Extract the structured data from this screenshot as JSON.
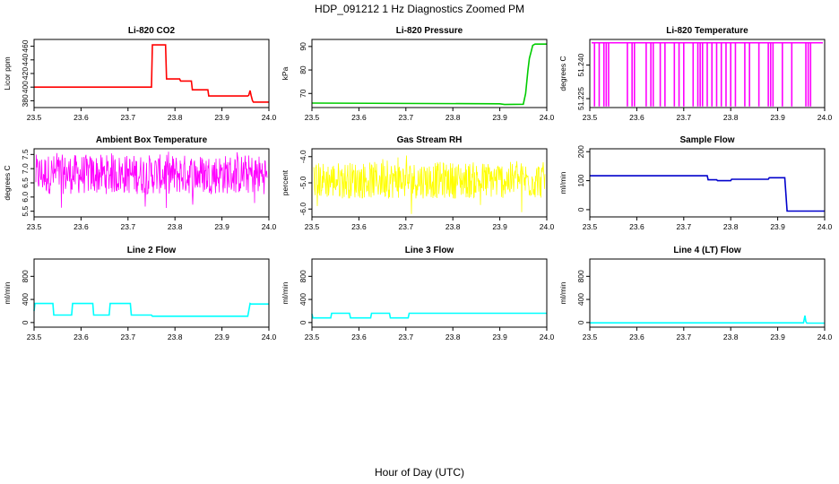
{
  "figure": {
    "title": "HDP_091212  1 Hz Diagnostics Zoomed PM",
    "xlabel": "Hour of Day (UTC)"
  },
  "chart_data": [
    {
      "type": "line",
      "title": "Li-820 CO2",
      "ylabel": "Licor ppm",
      "color": "#ff0000",
      "xlim": [
        23.5,
        24.0
      ],
      "ylim": [
        370,
        470
      ],
      "xticks": [
        "23.5",
        "23.6",
        "23.7",
        "23.8",
        "23.9",
        "24.0"
      ],
      "yticks": [
        "380",
        "400",
        "420",
        "440",
        "460"
      ],
      "series": [
        {
          "x": [
            23.5,
            23.75,
            23.752,
            23.78,
            23.782,
            23.81,
            23.812,
            23.835,
            23.837,
            23.87,
            23.872,
            23.955,
            23.957,
            23.96,
            23.962,
            23.965,
            23.967,
            24.0
          ],
          "y": [
            400,
            400,
            462,
            462,
            412,
            412,
            409,
            409,
            396,
            396,
            387,
            387,
            388,
            395,
            388,
            380,
            378,
            378
          ]
        }
      ]
    },
    {
      "type": "line",
      "title": "Li-820 Pressure",
      "ylabel": "kPa",
      "color": "#00cc00",
      "xlim": [
        23.5,
        24.0
      ],
      "ylim": [
        64,
        93
      ],
      "xticks": [
        "23.5",
        "23.6",
        "23.7",
        "23.8",
        "23.9",
        "24.0"
      ],
      "yticks": [
        "70",
        "80",
        "90"
      ],
      "series": [
        {
          "x": [
            23.5,
            23.9,
            23.91,
            23.95,
            23.955,
            23.96,
            23.963,
            23.967,
            23.97,
            23.975,
            24.0
          ],
          "y": [
            65.9,
            65.6,
            65.3,
            65.4,
            70,
            80,
            85,
            88,
            90.5,
            91,
            91
          ]
        }
      ]
    },
    {
      "type": "line",
      "title": "Li-820 Temperature",
      "ylabel": "degrees C",
      "color": "#ff00ff",
      "xlim": [
        23.5,
        24.0
      ],
      "ylim": [
        51.221,
        51.2515
      ],
      "xticks": [
        "23.5",
        "23.6",
        "23.7",
        "23.8",
        "23.9",
        "24.0"
      ],
      "yticks": [
        "51.225",
        "51.240"
      ],
      "series": [
        {
          "x": [
            23.51,
            23.52,
            23.53,
            23.535,
            23.54,
            23.58,
            23.59,
            23.595,
            23.62,
            23.63,
            23.635,
            23.65,
            23.66,
            23.68,
            23.69,
            23.7,
            23.72,
            23.73,
            23.735,
            23.74,
            23.75,
            23.76,
            23.77,
            23.78,
            23.79,
            23.8,
            23.81,
            23.83,
            23.84,
            23.86,
            23.88,
            23.885,
            23.89,
            23.91,
            23.93,
            23.96,
            23.965,
            23.97
          ],
          "high": 51.25,
          "low": 51.2215
        }
      ]
    },
    {
      "type": "line",
      "title": "Ambient Box Temperature",
      "ylabel": "degrees C",
      "color": "#ff00ff",
      "xlim": [
        23.5,
        24.0
      ],
      "ylim": [
        5.3,
        7.7
      ],
      "xticks": [
        "23.5",
        "23.6",
        "23.7",
        "23.8",
        "23.9",
        "24.0"
      ],
      "yticks": [
        "5.5",
        "6.0",
        "6.5",
        "7.0",
        "7.5"
      ],
      "series": [
        {
          "x_range": [
            23.5,
            24.0
          ],
          "mean": 6.8,
          "band": [
            6.1,
            7.5
          ],
          "min": 5.4,
          "max": 7.6
        }
      ]
    },
    {
      "type": "line",
      "title": "Gas Stream RH",
      "ylabel": "percent",
      "color": "#ffff00",
      "xlim": [
        23.5,
        24.0
      ],
      "ylim": [
        -6.3,
        -3.7
      ],
      "xticks": [
        "23.5",
        "23.6",
        "23.7",
        "23.8",
        "23.9",
        "24.0"
      ],
      "yticks": [
        "-6.0",
        "-5.0",
        "-4.0"
      ],
      "series": [
        {
          "x_range": [
            23.5,
            24.0
          ],
          "mean": -4.9,
          "band": [
            -5.6,
            -4.2
          ],
          "min": -6.2,
          "max": -3.9
        }
      ]
    },
    {
      "type": "line",
      "title": "Sample Flow",
      "ylabel": "ml/min",
      "color": "#0000cc",
      "xlim": [
        23.5,
        24.0
      ],
      "ylim": [
        -25,
        210
      ],
      "xticks": [
        "23.5",
        "23.6",
        "23.7",
        "23.8",
        "23.9",
        "24.0"
      ],
      "yticks": [
        "0",
        "100",
        "200"
      ],
      "series": [
        {
          "x": [
            23.5,
            23.75,
            23.752,
            23.77,
            23.772,
            23.8,
            23.802,
            23.88,
            23.882,
            23.915,
            23.92,
            24.0
          ],
          "y": [
            117,
            117,
            103,
            103,
            100,
            100,
            105,
            105,
            110,
            110,
            -5,
            -5
          ]
        }
      ]
    },
    {
      "type": "line",
      "title": "Line 2 Flow",
      "ylabel": "ml/min",
      "color": "#00ffff",
      "xlim": [
        23.5,
        24.0
      ],
      "ylim": [
        -80,
        1100
      ],
      "xticks": [
        "23.5",
        "23.6",
        "23.7",
        "23.8",
        "23.9",
        "24.0"
      ],
      "yticks": [
        "0",
        "400",
        "800"
      ],
      "series": [
        {
          "x": [
            23.5,
            23.502,
            23.54,
            23.542,
            23.58,
            23.582,
            23.625,
            23.627,
            23.66,
            23.662,
            23.705,
            23.707,
            23.75,
            23.752,
            23.955,
            23.957,
            23.96,
            23.962,
            24.0
          ],
          "y": [
            200,
            330,
            330,
            130,
            130,
            330,
            330,
            130,
            130,
            330,
            330,
            130,
            130,
            110,
            110,
            200,
            330,
            320,
            320
          ]
        }
      ]
    },
    {
      "type": "line",
      "title": "Line 3 Flow",
      "ylabel": "ml/min",
      "color": "#00ffff",
      "xlim": [
        23.5,
        24.0
      ],
      "ylim": [
        -80,
        1100
      ],
      "xticks": [
        "23.5",
        "23.6",
        "23.7",
        "23.8",
        "23.9",
        "24.0"
      ],
      "yticks": [
        "0",
        "400",
        "800"
      ],
      "series": [
        {
          "x": [
            23.5,
            23.502,
            23.54,
            23.542,
            23.58,
            23.582,
            23.625,
            23.627,
            23.665,
            23.667,
            23.705,
            23.707,
            24.0
          ],
          "y": [
            150,
            80,
            80,
            160,
            160,
            80,
            80,
            160,
            160,
            80,
            80,
            160,
            160
          ]
        }
      ]
    },
    {
      "type": "line",
      "title": "Line 4 (LT) Flow",
      "ylabel": "ml/min",
      "color": "#00ffff",
      "xlim": [
        23.5,
        24.0
      ],
      "ylim": [
        -80,
        1100
      ],
      "xticks": [
        "23.5",
        "23.6",
        "23.7",
        "23.8",
        "23.9",
        "24.0"
      ],
      "yticks": [
        "0",
        "400",
        "800"
      ],
      "series": [
        {
          "x": [
            23.5,
            23.955,
            23.957,
            23.958,
            23.96,
            23.962,
            24.0
          ],
          "y": [
            -5,
            -5,
            80,
            120,
            20,
            -10,
            -10
          ]
        }
      ]
    }
  ]
}
